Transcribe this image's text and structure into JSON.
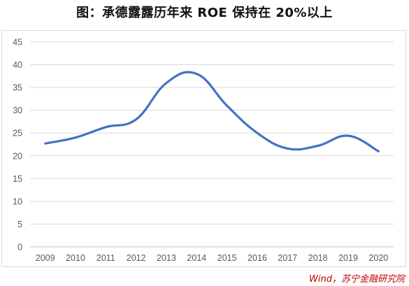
{
  "title": "图：承德露露历年来 ROE 保持在 20%以上",
  "source": "Wind，苏宁金融研究院",
  "chart_data": {
    "type": "line",
    "categories": [
      "2009",
      "2010",
      "2011",
      "2012",
      "2013",
      "2014",
      "2015",
      "2016",
      "2017",
      "2018",
      "2019",
      "2020"
    ],
    "series": [
      {
        "values": [
          22.7,
          24.0,
          26.3,
          28.0,
          36.0,
          38.0,
          31.0,
          25.0,
          21.6,
          22.2,
          24.4,
          21.0
        ],
        "color": "#4472c4"
      }
    ],
    "ylim": [
      0,
      45
    ],
    "yticks": [
      0,
      5,
      10,
      15,
      20,
      25,
      30,
      35,
      40,
      45
    ],
    "grid": "horizontal",
    "legend": "none",
    "smooth": true,
    "xlabel": "",
    "ylabel": ""
  }
}
